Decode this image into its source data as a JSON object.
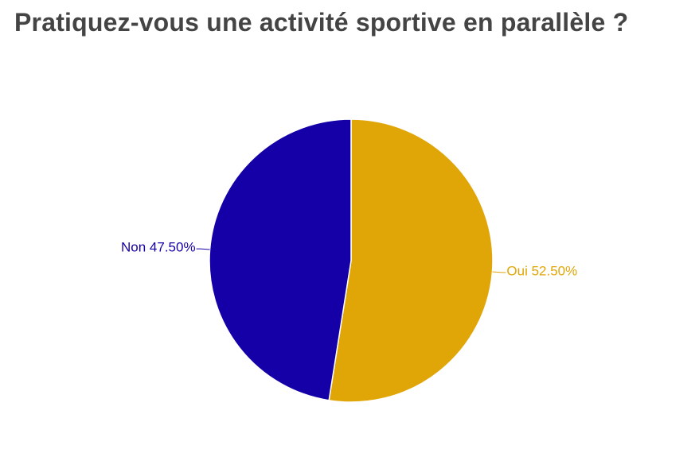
{
  "chart_data": {
    "type": "pie",
    "title": "Pratiquez-vous une activité sportive en parallèle ?",
    "categories": [
      "Oui",
      "Non"
    ],
    "values": [
      52.5,
      47.5
    ],
    "labels": [
      "Oui 52.50%",
      "Non 47.50%"
    ],
    "colors": [
      "#E0A608",
      "#1500A8"
    ],
    "start": "12 o'clock, clockwise",
    "legend": "none"
  }
}
